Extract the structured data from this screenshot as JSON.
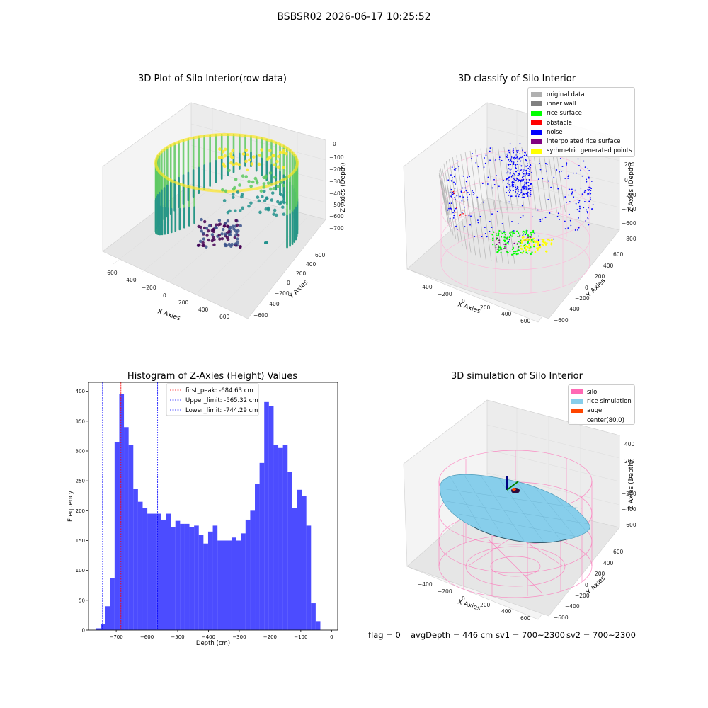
{
  "figure": {
    "suptitle": "BSBSR02 2026-06-17 10:25:52"
  },
  "panels": {
    "raw": {
      "title": "3D Plot of Silo Interior(row data)",
      "xlabel": "X Axies",
      "ylabel": "Y Axies",
      "zlabel": "Z Axies (Depth)",
      "xticks": [
        "−600",
        "−400",
        "−200",
        "0",
        "200",
        "400",
        "600"
      ],
      "yticks": [
        "−600",
        "−400",
        "−200",
        "0",
        "200",
        "400",
        "600"
      ],
      "zticks": [
        "0",
        "−100",
        "−200",
        "−300",
        "−400",
        "−500",
        "−600",
        "−700"
      ],
      "colormap": [
        "#440154",
        "#3b528b",
        "#21918c",
        "#5ec962",
        "#fde725"
      ]
    },
    "classify": {
      "title": "3D classify of Silo Interior",
      "xlabel": "X Axies",
      "ylabel": "Y Axies",
      "zlabel": "Z Axies (Depth)",
      "xticks": [
        "−400",
        "−200",
        "0",
        "200",
        "400",
        "600"
      ],
      "yticks": [
        "−600",
        "−400",
        "−200",
        "0",
        "200",
        "400",
        "600"
      ],
      "zticks": [
        "200",
        "0",
        "−200",
        "−400",
        "−600",
        "−800"
      ],
      "legend": [
        {
          "label": "original data",
          "color": "#b0b0b0"
        },
        {
          "label": "inner wall",
          "color": "#808080"
        },
        {
          "label": "rice surface",
          "color": "#00ff00"
        },
        {
          "label": "obstacle",
          "color": "#ff0000"
        },
        {
          "label": "noise",
          "color": "#0000ff"
        },
        {
          "label": "interpolated rice surface",
          "color": "#800080"
        },
        {
          "label": "symmetric generated points",
          "color": "#ffff00"
        }
      ]
    },
    "simulation": {
      "title": "3D simulation of Silo Interior",
      "xlabel": "X Axies",
      "ylabel": "Y Axies",
      "zlabel": "Z Axies (Depth)",
      "xticks": [
        "−400",
        "−200",
        "0",
        "200",
        "400",
        "600"
      ],
      "yticks": [
        "−600",
        "−400",
        "−200",
        "0",
        "200",
        "400",
        "600"
      ],
      "zticks": [
        "400",
        "200",
        "0",
        "−200",
        "−400",
        "−600"
      ],
      "legend": [
        {
          "label": "silo",
          "color": "#ff69b4"
        },
        {
          "label": "rice simulation",
          "color": "#87ceeb"
        },
        {
          "label": "auger",
          "color": "#ff4500"
        },
        {
          "label": "center(80,0)",
          "color": "#ffffff"
        }
      ]
    }
  },
  "chart_data": {
    "type": "bar",
    "title": "Histogram of Z-Axies (Height) Values",
    "xlabel": "Depth (cm)",
    "ylabel": "Frequency",
    "xlim": [
      -790,
      20
    ],
    "ylim": [
      0,
      415
    ],
    "xticks": [
      -700,
      -600,
      -500,
      -400,
      -300,
      -200,
      -100,
      0
    ],
    "xtick_labels": [
      "−700",
      "−600",
      "−500",
      "−400",
      "−300",
      "−200",
      "−100",
      "0"
    ],
    "yticks": [
      0,
      50,
      100,
      150,
      200,
      250,
      300,
      350,
      400
    ],
    "bin_start": -766,
    "bin_width": 15.2,
    "values": [
      3,
      10,
      40,
      87,
      315,
      395,
      340,
      310,
      237,
      215,
      205,
      195,
      195,
      195,
      185,
      195,
      173,
      183,
      178,
      178,
      172,
      175,
      160,
      145,
      165,
      175,
      150,
      150,
      150,
      155,
      150,
      162,
      185,
      200,
      245,
      280,
      382,
      375,
      310,
      305,
      310,
      265,
      205,
      235,
      225,
      175,
      45,
      15
    ],
    "bar_color": "#0000ff",
    "vlines": [
      {
        "label": "first_peak: -684.63 cm",
        "x": -684.63,
        "color": "#ff0000"
      },
      {
        "label": "Upper_limit: -565.32 cm",
        "x": -565.32,
        "color": "#0000ff"
      },
      {
        "label": "Lower_limit: -744.29 cm",
        "x": -744.29,
        "color": "#0000ff"
      }
    ],
    "legend_position": "top-center"
  },
  "footer": {
    "flag": "flag = 0",
    "avg_depth": "avgDepth = 446 cm",
    "sv1": "sv1 = 700~2300",
    "sv2": "sv2 = 700~2300"
  }
}
